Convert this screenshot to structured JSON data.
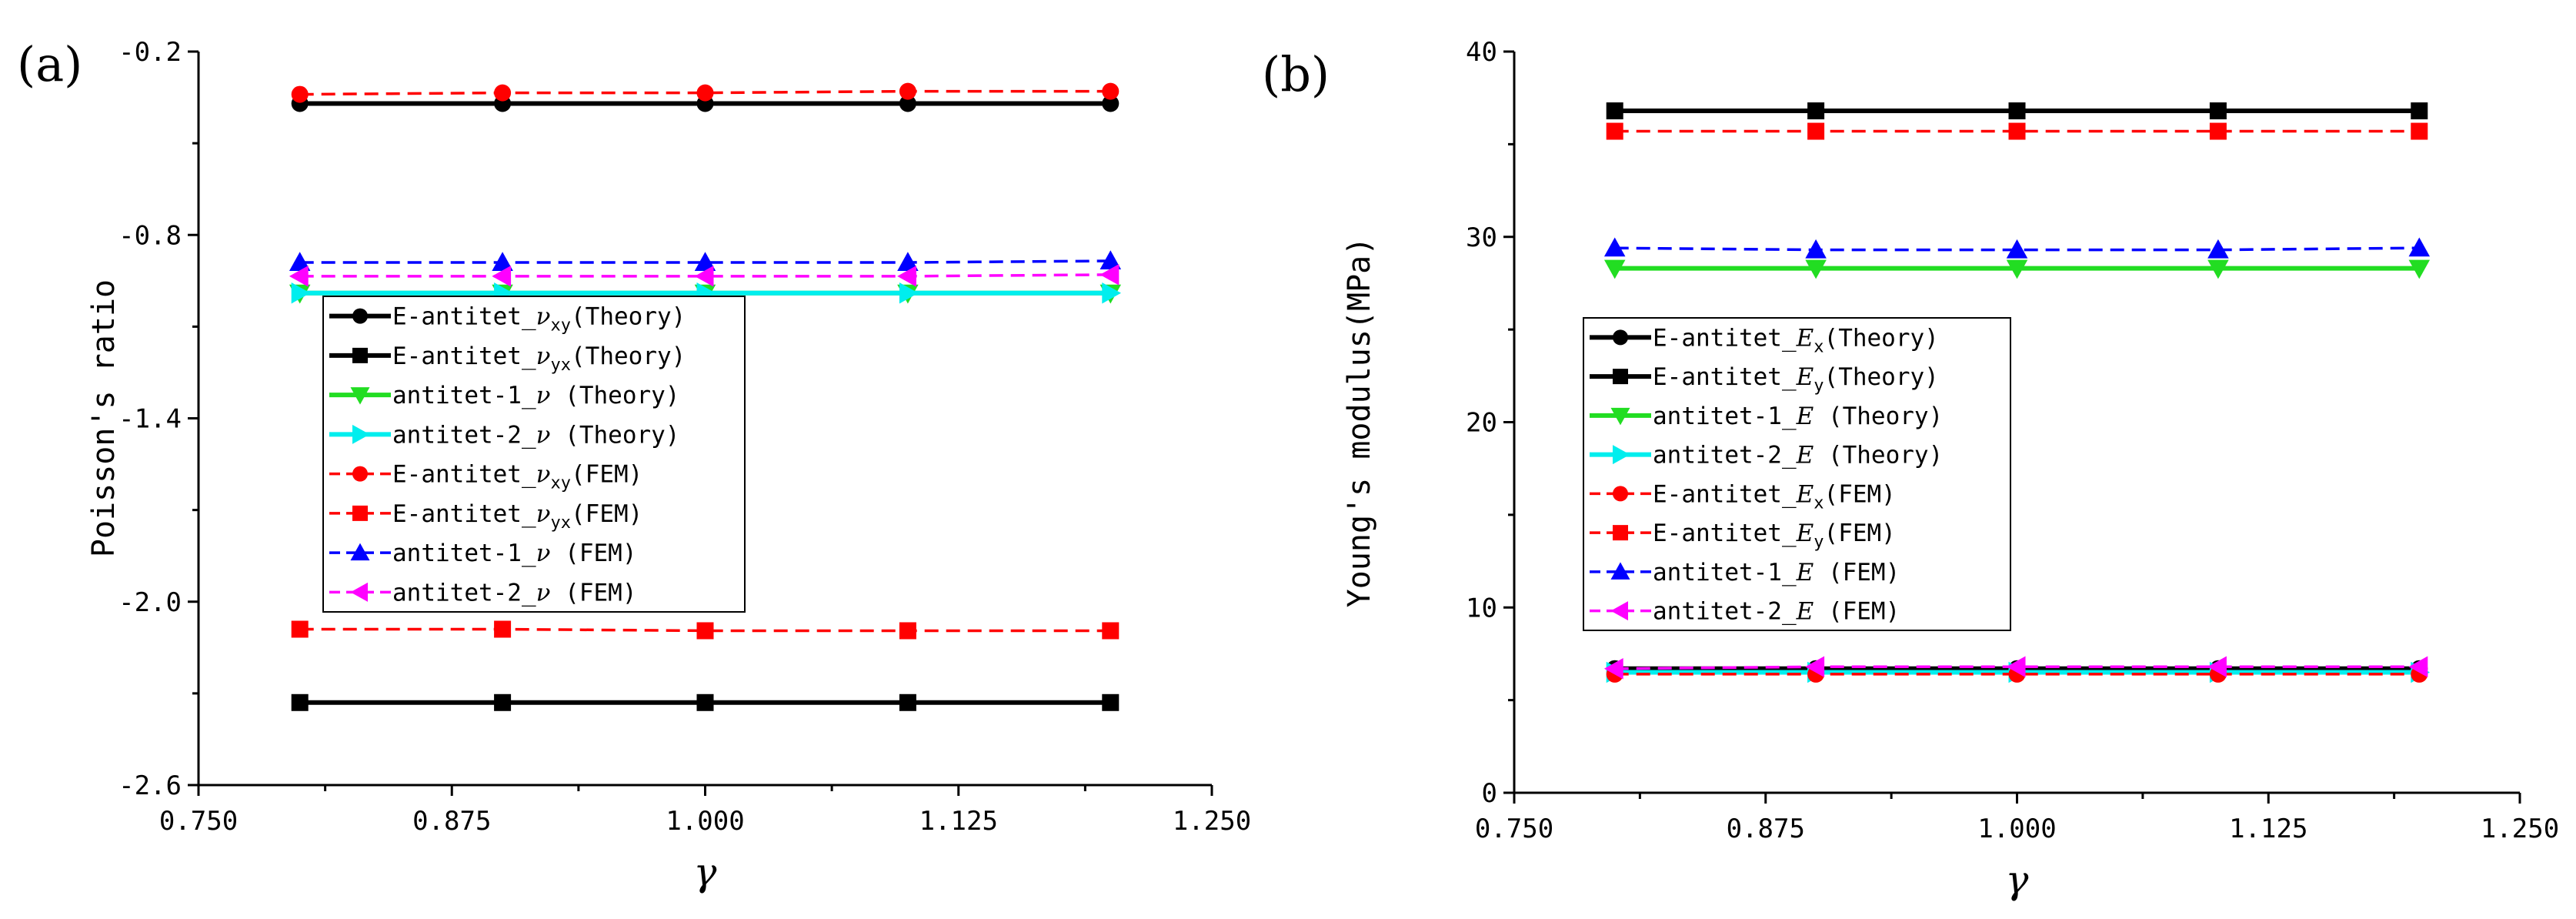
{
  "chart_data": [
    {
      "type": "line",
      "panel_label": "(a)",
      "xlabel": "γ",
      "ylabel": "Poisson's ratio",
      "xlim": [
        0.75,
        1.25
      ],
      "ylim": [
        -2.6,
        -0.2
      ],
      "xticks": [
        "0.750",
        "0.875",
        "1.000",
        "1.125",
        "1.250"
      ],
      "yticks": [
        "-2.6",
        "-2.0",
        "-1.4",
        "-0.8",
        "-0.2"
      ],
      "x": [
        0.8,
        0.9,
        1.0,
        1.1,
        1.2
      ],
      "legend_position": "center-left",
      "series": [
        {
          "name": "E-antitet_",
          "sym": "ν",
          "sub": "xy",
          "tag": "(Theory)",
          "values": [
            -0.37,
            -0.37,
            -0.37,
            -0.37,
            -0.37
          ],
          "color": "#000000",
          "marker": "circle",
          "dash": false
        },
        {
          "name": "E-antitet_",
          "sym": "ν",
          "sub": "yx",
          "tag": "(Theory)",
          "values": [
            -2.33,
            -2.33,
            -2.33,
            -2.33,
            -2.33
          ],
          "color": "#000000",
          "marker": "square",
          "dash": false
        },
        {
          "name": "antitet-1_",
          "sym": "ν",
          "sub": "",
          "tag": " (Theory)",
          "values": [
            -0.99,
            -0.99,
            -0.99,
            -0.99,
            -0.99
          ],
          "color": "#22dd22",
          "marker": "tri-down",
          "dash": false
        },
        {
          "name": "antitet-2_",
          "sym": "ν",
          "sub": "",
          "tag": " (Theory)",
          "values": [
            -0.99,
            -0.99,
            -0.99,
            -0.99,
            -0.99
          ],
          "color": "#00eeee",
          "marker": "tri-right",
          "dash": false
        },
        {
          "name": "E-antitet_",
          "sym": "ν",
          "sub": "xy",
          "tag": "(FEM)",
          "values": [
            -0.34,
            -0.335,
            -0.335,
            -0.33,
            -0.33
          ],
          "color": "#ff0000",
          "marker": "circle",
          "dash": true
        },
        {
          "name": "E-antitet_",
          "sym": "ν",
          "sub": "yx",
          "tag": "(FEM)",
          "values": [
            -2.09,
            -2.09,
            -2.095,
            -2.095,
            -2.095
          ],
          "color": "#ff0000",
          "marker": "square",
          "dash": true
        },
        {
          "name": "antitet-1_",
          "sym": "ν",
          "sub": "",
          "tag": " (FEM)",
          "values": [
            -0.89,
            -0.89,
            -0.89,
            -0.89,
            -0.885
          ],
          "color": "#0000ff",
          "marker": "tri-up",
          "dash": true
        },
        {
          "name": "antitet-2_",
          "sym": "ν",
          "sub": "",
          "tag": " (FEM)",
          "values": [
            -0.935,
            -0.935,
            -0.935,
            -0.935,
            -0.93
          ],
          "color": "#ff00ff",
          "marker": "tri-left",
          "dash": true
        }
      ]
    },
    {
      "type": "line",
      "panel_label": "(b)",
      "xlabel": "γ",
      "ylabel": "Young's modulus(MPa)",
      "xlim": [
        0.75,
        1.25
      ],
      "ylim": [
        0,
        40
      ],
      "xticks": [
        "0.750",
        "0.875",
        "1.000",
        "1.125",
        "1.250"
      ],
      "yticks": [
        "0",
        "10",
        "20",
        "30",
        "40"
      ],
      "x": [
        0.8,
        0.9,
        1.0,
        1.1,
        1.2
      ],
      "legend_position": "center-left",
      "series": [
        {
          "name": "E-antitet_",
          "sym": "E",
          "sub": "x",
          "tag": "(Theory)",
          "values": [
            6.7,
            6.7,
            6.7,
            6.7,
            6.7
          ],
          "color": "#000000",
          "marker": "circle",
          "dash": false
        },
        {
          "name": "E-antitet_",
          "sym": "E",
          "sub": "y",
          "tag": "(Theory)",
          "values": [
            36.8,
            36.8,
            36.8,
            36.8,
            36.8
          ],
          "color": "#000000",
          "marker": "square",
          "dash": false
        },
        {
          "name": "antitet-1_",
          "sym": "E",
          "sub": "",
          "tag": " (Theory)",
          "values": [
            28.3,
            28.3,
            28.3,
            28.3,
            28.3
          ],
          "color": "#22dd22",
          "marker": "tri-down",
          "dash": false
        },
        {
          "name": "antitet-2_",
          "sym": "E",
          "sub": "",
          "tag": " (Theory)",
          "values": [
            6.5,
            6.5,
            6.5,
            6.5,
            6.5
          ],
          "color": "#00eeee",
          "marker": "tri-right",
          "dash": false
        },
        {
          "name": "E-antitet_",
          "sym": "E",
          "sub": "x",
          "tag": "(FEM)",
          "values": [
            6.4,
            6.4,
            6.4,
            6.4,
            6.4
          ],
          "color": "#ff0000",
          "marker": "circle",
          "dash": true
        },
        {
          "name": "E-antitet_",
          "sym": "E",
          "sub": "y",
          "tag": "(FEM)",
          "values": [
            35.7,
            35.7,
            35.7,
            35.7,
            35.7
          ],
          "color": "#ff0000",
          "marker": "square",
          "dash": true
        },
        {
          "name": "antitet-1_",
          "sym": "E",
          "sub": "",
          "tag": " (FEM)",
          "values": [
            29.4,
            29.3,
            29.3,
            29.3,
            29.4
          ],
          "color": "#0000ff",
          "marker": "tri-up",
          "dash": true
        },
        {
          "name": "antitet-2_",
          "sym": "E",
          "sub": "",
          "tag": " (FEM)",
          "values": [
            6.7,
            6.8,
            6.8,
            6.8,
            6.8
          ],
          "color": "#ff00ff",
          "marker": "tri-left",
          "dash": true
        }
      ]
    }
  ]
}
